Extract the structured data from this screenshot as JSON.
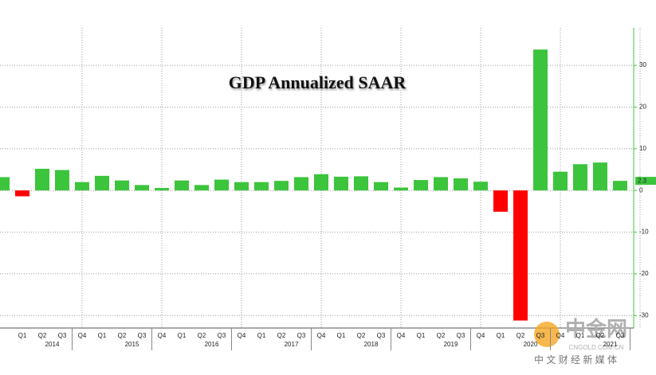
{
  "chart_data": {
    "type": "bar",
    "title": "GDP Annualized SAAR",
    "categories": [
      null,
      "Q1",
      "Q2",
      "Q3",
      "Q4",
      "Q1",
      "Q2",
      "Q3",
      "Q4",
      "Q1",
      "Q2",
      "Q3",
      "Q4",
      "Q1",
      "Q2",
      "Q3",
      "Q4",
      "Q1",
      "Q2",
      "Q3",
      "Q4",
      "Q1",
      "Q2",
      "Q3",
      "Q4",
      "Q1",
      "Q2",
      "Q3",
      "Q4",
      "Q1",
      "Q2",
      "Q3"
    ],
    "years": [
      "2014",
      "2015",
      "2016",
      "2017",
      "2018",
      "2019",
      "2020",
      "2021"
    ],
    "values": [
      3.2,
      -1.4,
      5.2,
      4.9,
      2.0,
      3.5,
      2.4,
      1.3,
      0.6,
      2.4,
      1.3,
      2.6,
      2.0,
      2.0,
      2.3,
      3.2,
      3.9,
      3.3,
      3.4,
      2.0,
      0.7,
      2.5,
      3.2,
      2.9,
      2.1,
      -5.1,
      -31.2,
      33.8,
      4.5,
      6.3,
      6.7,
      2.3
    ],
    "value_labels": [
      null,
      null,
      null,
      null,
      null,
      null,
      null,
      null,
      null,
      null,
      null,
      null,
      null,
      null,
      null,
      null,
      null,
      null,
      null,
      null,
      null,
      null,
      null,
      null,
      null,
      null,
      null,
      null,
      null,
      null,
      null,
      "2.3"
    ],
    "positive_color": "#3cc43c",
    "negative_color": "#ff0000",
    "ylim": [
      -33,
      39
    ],
    "yticks": [
      -30,
      -20,
      -10,
      0,
      10,
      20,
      30
    ],
    "grid": true
  },
  "watermark": {
    "brand": "中金网",
    "domain": "CNGOLD.COM.CN",
    "slogan": "中 文 财 经 新 媒 体"
  }
}
